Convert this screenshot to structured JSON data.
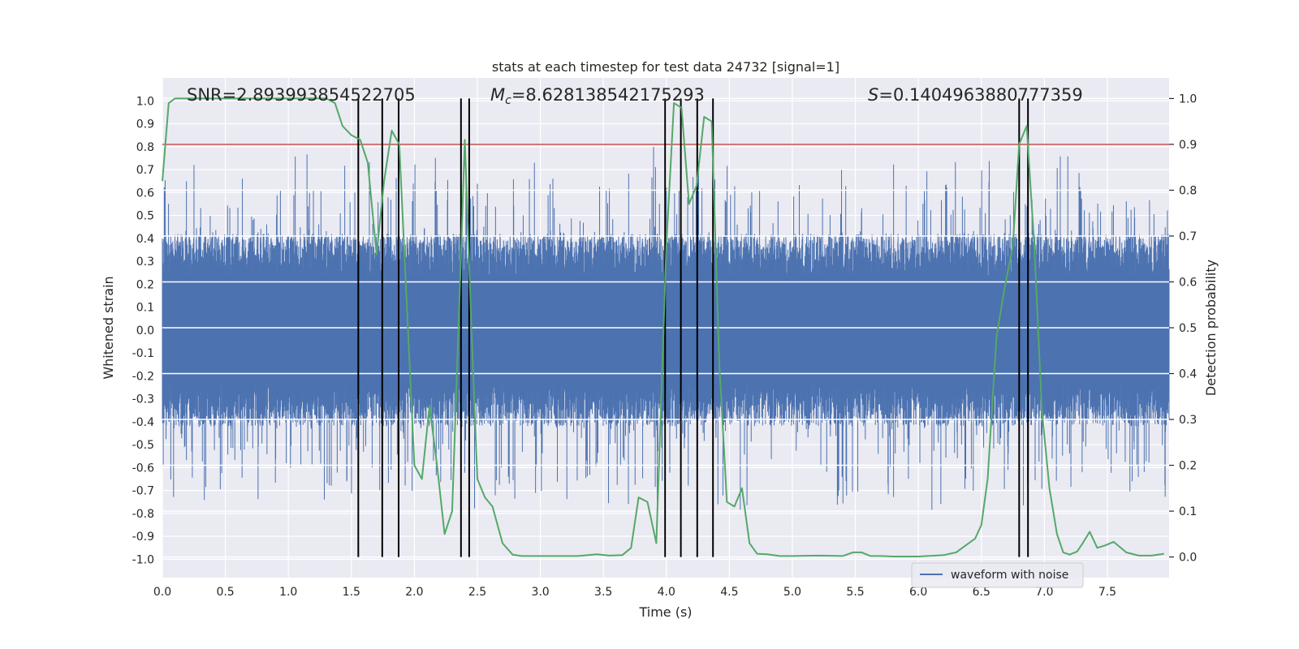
{
  "chart_data": {
    "type": "line",
    "title": "stats at each timestep for test data 24732 [signal=1]",
    "xlabel": "Time (s)",
    "ylabel": "Whitened strain",
    "y2label": "Detection probability",
    "xlim": [
      0.0,
      7.99
    ],
    "ylim": [
      -1.08,
      1.1
    ],
    "y2lim": [
      -0.045,
      1.045
    ],
    "xticks": [
      "0.0",
      "0.5",
      "1.0",
      "1.5",
      "2.0",
      "2.5",
      "3.0",
      "3.5",
      "4.0",
      "4.5",
      "5.0",
      "5.5",
      "6.0",
      "6.5",
      "7.0",
      "7.5"
    ],
    "yticks": [
      "1.0",
      "0.9",
      "0.8",
      "0.7",
      "0.6",
      "0.5",
      "0.4",
      "0.3",
      "0.2",
      "0.1",
      "0.0",
      "-0.1",
      "-0.2",
      "-0.3",
      "-0.4",
      "-0.5",
      "-0.6",
      "-0.7",
      "-0.8",
      "-0.9",
      "-1.0"
    ],
    "y2ticks": [
      "1.0",
      "0.9",
      "0.8",
      "0.7",
      "0.6",
      "0.5",
      "0.4",
      "0.3",
      "0.2",
      "0.1",
      "0.0"
    ],
    "annotations": {
      "snr": "SNR=2.893993854522705",
      "mc_symbol": "M",
      "mc_subscript": "c",
      "mc_value": "=8.628138542175293",
      "s_symbol": "S",
      "s_value": "=0.1404963880777359"
    },
    "legend": {
      "entries": [
        "waveform with noise"
      ],
      "placement": "lower-right"
    },
    "threshold": {
      "value": 0.9,
      "axis": "right",
      "color": "#c44e52"
    },
    "waveform": {
      "name": "waveform with noise",
      "color": "#4c72b0",
      "t_start": 0.0,
      "t_end": 7.99,
      "typical_amplitude": 0.42,
      "max_amplitude": 1.0,
      "min_amplitude": -1.0
    },
    "detection_probability": {
      "color": "#55a868",
      "x": [
        0.0,
        0.05,
        0.1,
        0.2,
        0.3,
        0.4,
        0.5,
        0.6,
        0.7,
        0.8,
        0.9,
        1.0,
        1.1,
        1.2,
        1.3,
        1.37,
        1.43,
        1.5,
        1.57,
        1.63,
        1.7,
        1.76,
        1.82,
        1.88,
        1.94,
        2.0,
        2.06,
        2.12,
        2.18,
        2.24,
        2.3,
        2.36,
        2.4,
        2.45,
        2.5,
        2.56,
        2.62,
        2.7,
        2.78,
        2.85,
        2.95,
        3.1,
        3.3,
        3.45,
        3.55,
        3.65,
        3.72,
        3.78,
        3.85,
        3.92,
        4.0,
        4.06,
        4.12,
        4.18,
        4.24,
        4.3,
        4.36,
        4.42,
        4.48,
        4.54,
        4.6,
        4.66,
        4.72,
        4.8,
        4.9,
        5.0,
        5.2,
        5.4,
        5.48,
        5.55,
        5.62,
        5.7,
        5.8,
        6.0,
        6.2,
        6.3,
        6.4,
        6.45,
        6.5,
        6.55,
        6.62,
        6.68,
        6.75,
        6.8,
        6.86,
        6.92,
        6.98,
        7.04,
        7.1,
        7.15,
        7.2,
        7.26,
        7.3,
        7.36,
        7.42,
        7.48,
        7.55,
        7.65,
        7.75,
        7.85,
        7.95
      ],
      "values": [
        0.82,
        0.99,
        1.0,
        1.0,
        1.0,
        1.0,
        1.0,
        1.0,
        1.0,
        1.0,
        1.0,
        1.0,
        1.0,
        1.0,
        1.0,
        0.99,
        0.94,
        0.92,
        0.91,
        0.86,
        0.66,
        0.82,
        0.93,
        0.9,
        0.55,
        0.2,
        0.17,
        0.33,
        0.2,
        0.05,
        0.1,
        0.58,
        0.91,
        0.52,
        0.17,
        0.13,
        0.11,
        0.03,
        0.005,
        0.002,
        0.002,
        0.002,
        0.002,
        0.006,
        0.003,
        0.004,
        0.02,
        0.13,
        0.12,
        0.03,
        0.68,
        0.99,
        0.98,
        0.77,
        0.81,
        0.96,
        0.95,
        0.42,
        0.12,
        0.11,
        0.15,
        0.03,
        0.007,
        0.006,
        0.002,
        0.002,
        0.003,
        0.002,
        0.01,
        0.01,
        0.002,
        0.002,
        0.001,
        0.001,
        0.004,
        0.01,
        0.03,
        0.04,
        0.07,
        0.17,
        0.48,
        0.58,
        0.68,
        0.9,
        0.94,
        0.68,
        0.32,
        0.15,
        0.05,
        0.01,
        0.005,
        0.012,
        0.028,
        0.055,
        0.02,
        0.025,
        0.033,
        0.01,
        0.003,
        0.003,
        0.007
      ]
    },
    "vertical_markers": [
      1.555,
      1.745,
      1.875,
      2.37,
      2.435,
      3.99,
      4.115,
      4.245,
      4.37,
      6.8,
      6.87
    ]
  }
}
